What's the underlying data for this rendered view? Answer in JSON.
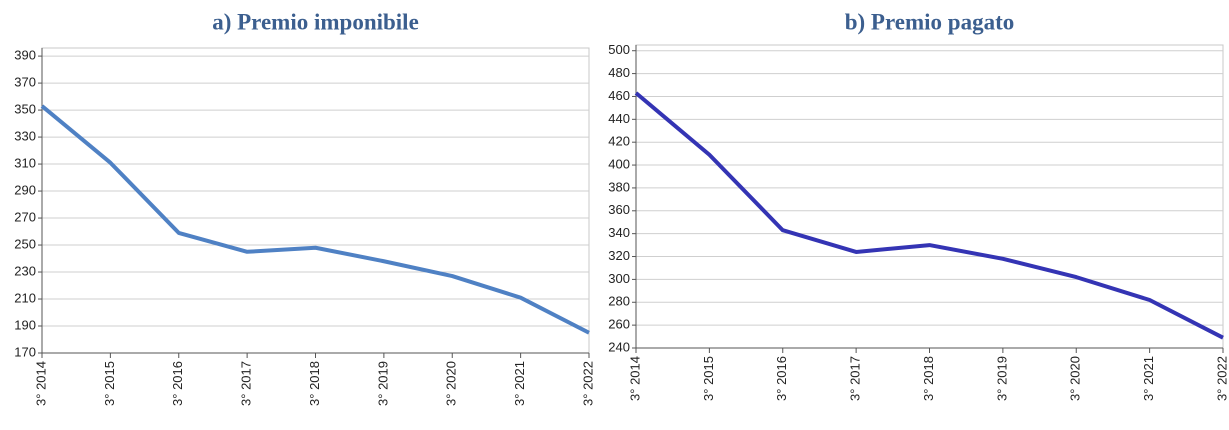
{
  "chart_data": [
    {
      "type": "line",
      "title": "a) Premio imponibile",
      "categories": [
        "3° 2014",
        "3° 2015",
        "3° 2016",
        "3° 2017",
        "3° 2018",
        "3° 2019",
        "3° 2020",
        "3° 2021",
        "3° 2022"
      ],
      "values": [
        353,
        311,
        259,
        245,
        248,
        238,
        227,
        211,
        185
      ],
      "color": "#4f81c4",
      "ylim": [
        170,
        396
      ],
      "yticks": [
        170,
        190,
        210,
        230,
        250,
        270,
        290,
        310,
        330,
        350,
        370,
        390
      ],
      "grid": true
    },
    {
      "type": "line",
      "title": "b) Premio pagato",
      "categories": [
        "3° 2014",
        "3° 2015",
        "3° 2016",
        "3° 2017",
        "3° 2018",
        "3° 2019",
        "3° 2020",
        "3° 2021",
        "3° 2022"
      ],
      "values": [
        463,
        409,
        343,
        324,
        330,
        318,
        302,
        282,
        249
      ],
      "color": "#3434b4",
      "ylim": [
        240,
        505
      ],
      "yticks": [
        240,
        260,
        280,
        300,
        320,
        340,
        360,
        380,
        400,
        420,
        440,
        460,
        480,
        500
      ],
      "grid": true
    }
  ]
}
